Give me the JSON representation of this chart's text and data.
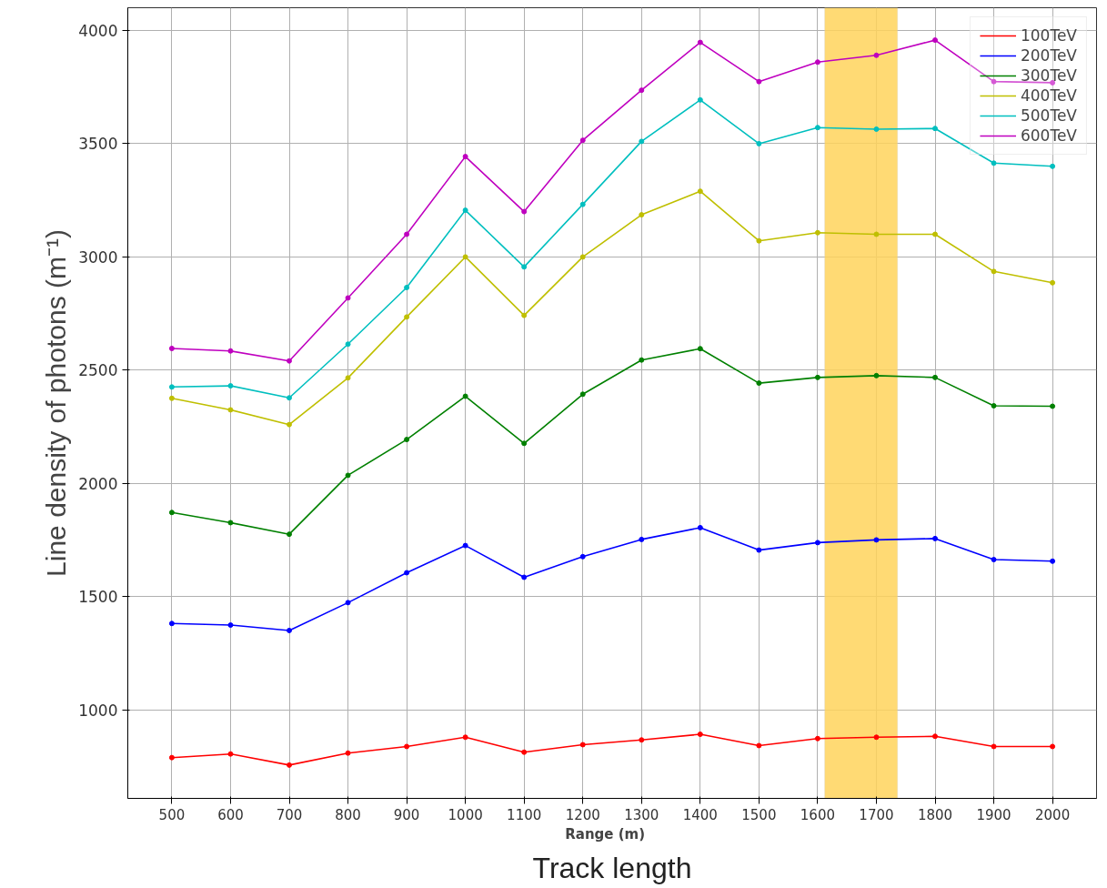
{
  "chart_data": {
    "type": "line",
    "xlabel": "Range    (m)",
    "ylabel": "Line density of photons (m⁻¹)",
    "annotations": [
      "Track length"
    ],
    "x": [
      500,
      600,
      700,
      800,
      900,
      1000,
      1100,
      1200,
      1300,
      1400,
      1500,
      1600,
      1700,
      1800,
      1900,
      2000
    ],
    "series": [
      {
        "name": "100TeV",
        "color": "#ff0000",
        "values": [
          790,
          806,
          757,
          810,
          839,
          880,
          814,
          847,
          868,
          893,
          843,
          874,
          880,
          884,
          839,
          839
        ]
      },
      {
        "name": "200TeV",
        "color": "#0000ff",
        "values": [
          1382,
          1375,
          1351,
          1474,
          1606,
          1726,
          1586,
          1677,
          1753,
          1805,
          1706,
          1739,
          1751,
          1757,
          1664,
          1657
        ]
      },
      {
        "name": "300TeV",
        "color": "#008000",
        "values": [
          1872,
          1827,
          1776,
          2036,
          2194,
          2385,
          2177,
          2394,
          2545,
          2595,
          2443,
          2468,
          2476,
          2468,
          2343,
          2341
        ]
      },
      {
        "name": "400TeV",
        "color": "#bfbf00",
        "values": [
          2376,
          2325,
          2260,
          2466,
          2735,
          3000,
          2742,
          3000,
          3186,
          3290,
          3071,
          3107,
          3100,
          3100,
          2936,
          2886
        ]
      },
      {
        "name": "500TeV",
        "color": "#00bfbf",
        "values": [
          2426,
          2431,
          2378,
          2615,
          2865,
          3206,
          2956,
          3232,
          3510,
          3693,
          3500,
          3571,
          3564,
          3567,
          3414,
          3400
        ]
      },
      {
        "name": "600TeV",
        "color": "#bf00bf",
        "values": [
          2596,
          2585,
          2541,
          2819,
          3100,
          3443,
          3200,
          3515,
          3736,
          3947,
          3774,
          3860,
          3890,
          3957,
          3774,
          3769
        ]
      }
    ],
    "xlim": [
      425,
      2075
    ],
    "ylim": [
      610,
      4100
    ],
    "xticks": [
      500,
      600,
      700,
      800,
      900,
      1000,
      1100,
      1200,
      1300,
      1400,
      1500,
      1600,
      1700,
      1800,
      1900,
      2000
    ],
    "yticks": [
      1000,
      1500,
      2000,
      2500,
      3000,
      3500,
      4000
    ],
    "bands": [
      {
        "axis": "x",
        "from": 1612,
        "to": 1736,
        "color": "#ffd35c"
      }
    ],
    "grid": true,
    "legend": "top right",
    "marker": "circle",
    "line_style": "solid"
  }
}
